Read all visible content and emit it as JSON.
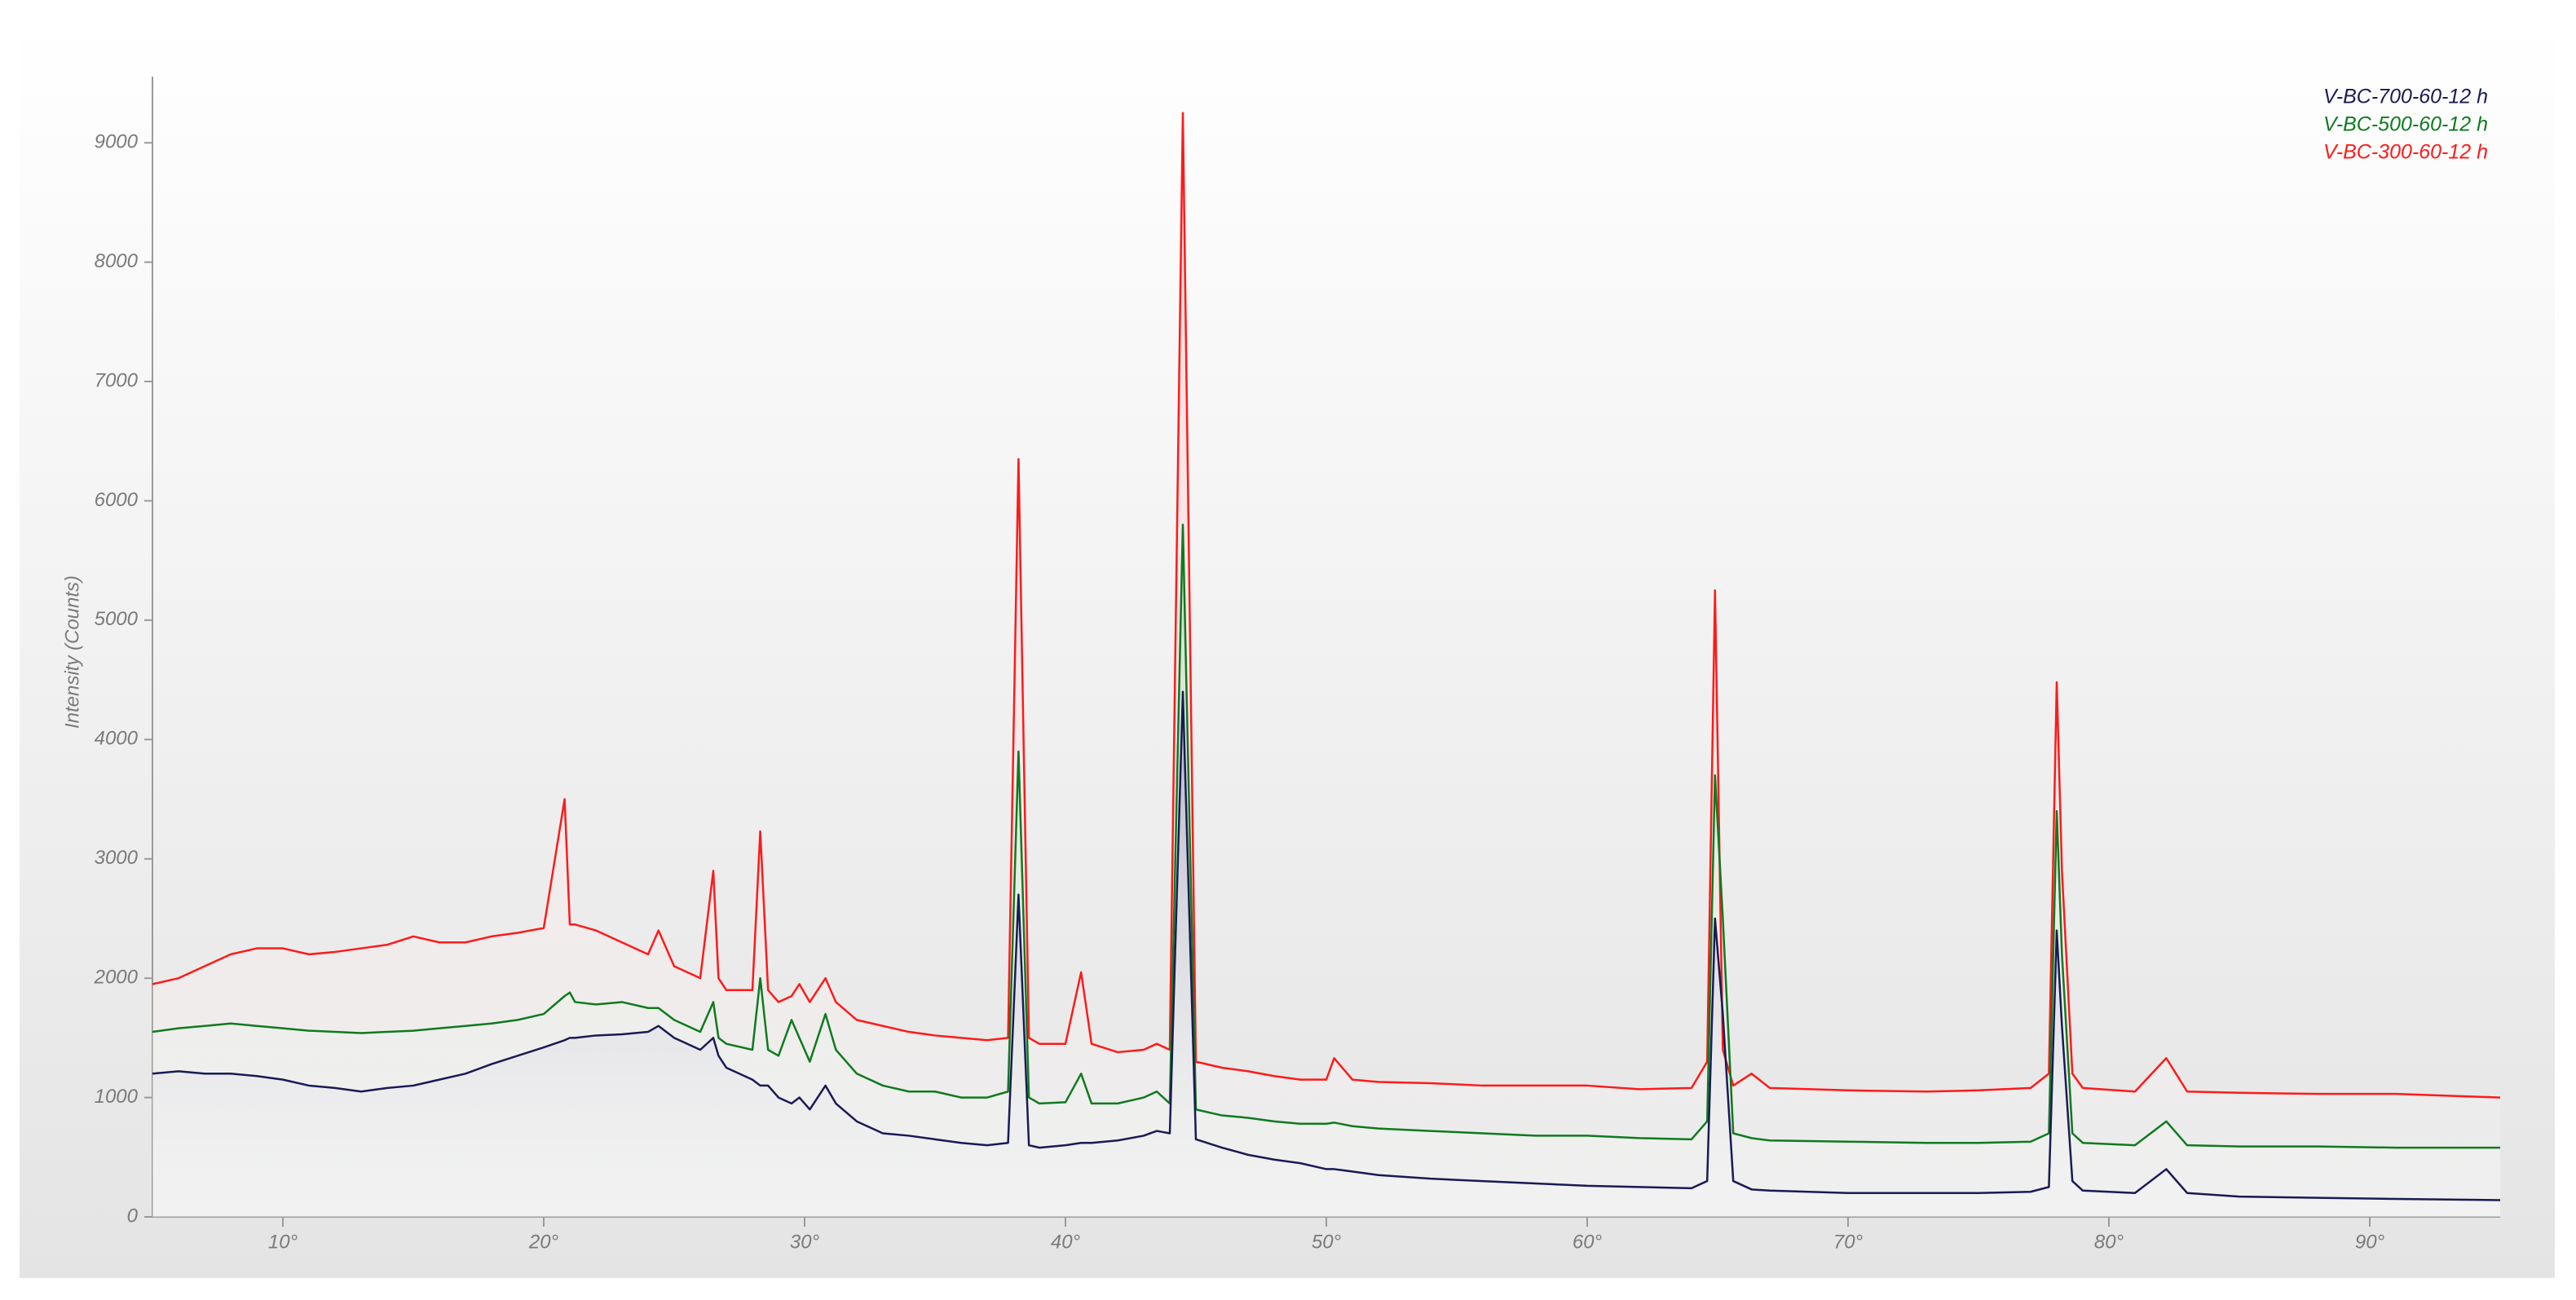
{
  "chart_data": {
    "type": "line",
    "y_label": "Intensity (Counts)",
    "x": [
      5,
      6,
      7,
      8,
      9,
      10,
      11,
      12,
      13,
      14,
      15,
      16,
      17,
      18,
      19,
      20,
      20.8,
      21,
      21.2,
      22,
      23,
      24,
      24.4,
      25,
      26,
      26.5,
      26.7,
      27,
      28,
      28.3,
      28.6,
      29,
      29.5,
      29.8,
      30.2,
      30.8,
      31.2,
      32,
      33,
      34,
      35,
      36,
      37,
      37.8,
      38.2,
      38.6,
      39,
      40,
      40.6,
      41,
      42,
      43,
      43.5,
      44,
      44.5,
      45,
      46,
      47,
      48,
      49,
      50,
      50.3,
      51,
      52,
      54,
      56,
      58,
      60,
      62,
      64,
      64.6,
      64.9,
      65.2,
      65.6,
      66.3,
      67,
      70,
      73,
      75,
      77,
      77.7,
      78,
      78.2,
      78.6,
      79,
      81,
      82.2,
      83,
      85,
      88,
      91,
      95
    ],
    "series": [
      {
        "name": "V-BC-700-60-12 h",
        "color": "#1a1a55",
        "values": [
          1200,
          1220,
          1200,
          1200,
          1180,
          1150,
          1100,
          1080,
          1050,
          1080,
          1100,
          1150,
          1200,
          1280,
          1350,
          1420,
          1480,
          1500,
          1500,
          1520,
          1530,
          1550,
          1600,
          1500,
          1400,
          1500,
          1350,
          1250,
          1150,
          1100,
          1100,
          1000,
          950,
          1000,
          900,
          1100,
          950,
          800,
          700,
          680,
          650,
          620,
          600,
          620,
          2700,
          600,
          580,
          600,
          620,
          620,
          640,
          680,
          720,
          700,
          4400,
          650,
          580,
          520,
          480,
          450,
          400,
          400,
          380,
          350,
          320,
          300,
          280,
          260,
          250,
          240,
          300,
          2500,
          1700,
          300,
          230,
          220,
          200,
          200,
          200,
          210,
          250,
          2400,
          1600,
          300,
          220,
          200,
          400,
          200,
          170,
          160,
          150,
          140
        ]
      },
      {
        "name": "V-BC-500-60-12 h",
        "color": "#0f7a1e",
        "values": [
          1550,
          1580,
          1600,
          1620,
          1600,
          1580,
          1560,
          1550,
          1540,
          1550,
          1560,
          1580,
          1600,
          1620,
          1650,
          1700,
          1850,
          1880,
          1800,
          1780,
          1800,
          1750,
          1750,
          1650,
          1550,
          1800,
          1500,
          1450,
          1400,
          2000,
          1400,
          1350,
          1650,
          1500,
          1300,
          1700,
          1400,
          1200,
          1100,
          1050,
          1050,
          1000,
          1000,
          1050,
          3900,
          1000,
          950,
          960,
          1200,
          950,
          950,
          1000,
          1050,
          950,
          5800,
          900,
          850,
          830,
          800,
          780,
          780,
          790,
          760,
          740,
          720,
          700,
          680,
          680,
          660,
          650,
          800,
          3700,
          2500,
          700,
          660,
          640,
          630,
          620,
          620,
          630,
          700,
          3400,
          2200,
          700,
          620,
          600,
          800,
          600,
          590,
          590,
          580,
          580
        ]
      },
      {
        "name": "V-BC-300-60-12 h",
        "color": "#ff1a1a",
        "values": [
          1950,
          2000,
          2100,
          2200,
          2250,
          2250,
          2200,
          2220,
          2250,
          2280,
          2350,
          2300,
          2300,
          2350,
          2380,
          2420,
          3500,
          2450,
          2450,
          2400,
          2300,
          2200,
          2400,
          2100,
          2000,
          2900,
          2000,
          1900,
          1900,
          3230,
          1900,
          1800,
          1850,
          1950,
          1800,
          2000,
          1800,
          1650,
          1600,
          1550,
          1520,
          1500,
          1480,
          1500,
          6350,
          1500,
          1450,
          1450,
          2050,
          1450,
          1380,
          1400,
          1450,
          1400,
          9250,
          1300,
          1250,
          1220,
          1180,
          1150,
          1150,
          1330,
          1150,
          1130,
          1120,
          1100,
          1100,
          1100,
          1070,
          1080,
          1300,
          5250,
          1400,
          1100,
          1200,
          1080,
          1060,
          1050,
          1060,
          1080,
          1200,
          4480,
          2900,
          1200,
          1080,
          1050,
          1330,
          1050,
          1040,
          1030,
          1030,
          1000
        ]
      }
    ],
    "xlim": [
      5,
      95
    ],
    "xticks": [
      {
        "value": 10,
        "label": "10°"
      },
      {
        "value": 20,
        "label": "20°"
      },
      {
        "value": 30,
        "label": "30°"
      },
      {
        "value": 40,
        "label": "40°"
      },
      {
        "value": 50,
        "label": "50°"
      },
      {
        "value": 60,
        "label": "60°"
      },
      {
        "value": 70,
        "label": "70°"
      },
      {
        "value": 80,
        "label": "80°"
      },
      {
        "value": 90,
        "label": "90°"
      }
    ],
    "ylim": [
      0,
      9500
    ],
    "yticks": [
      0,
      1000,
      2000,
      3000,
      4000,
      5000,
      6000,
      7000,
      8000,
      9000
    ],
    "grid": false,
    "legend": "top-right"
  }
}
